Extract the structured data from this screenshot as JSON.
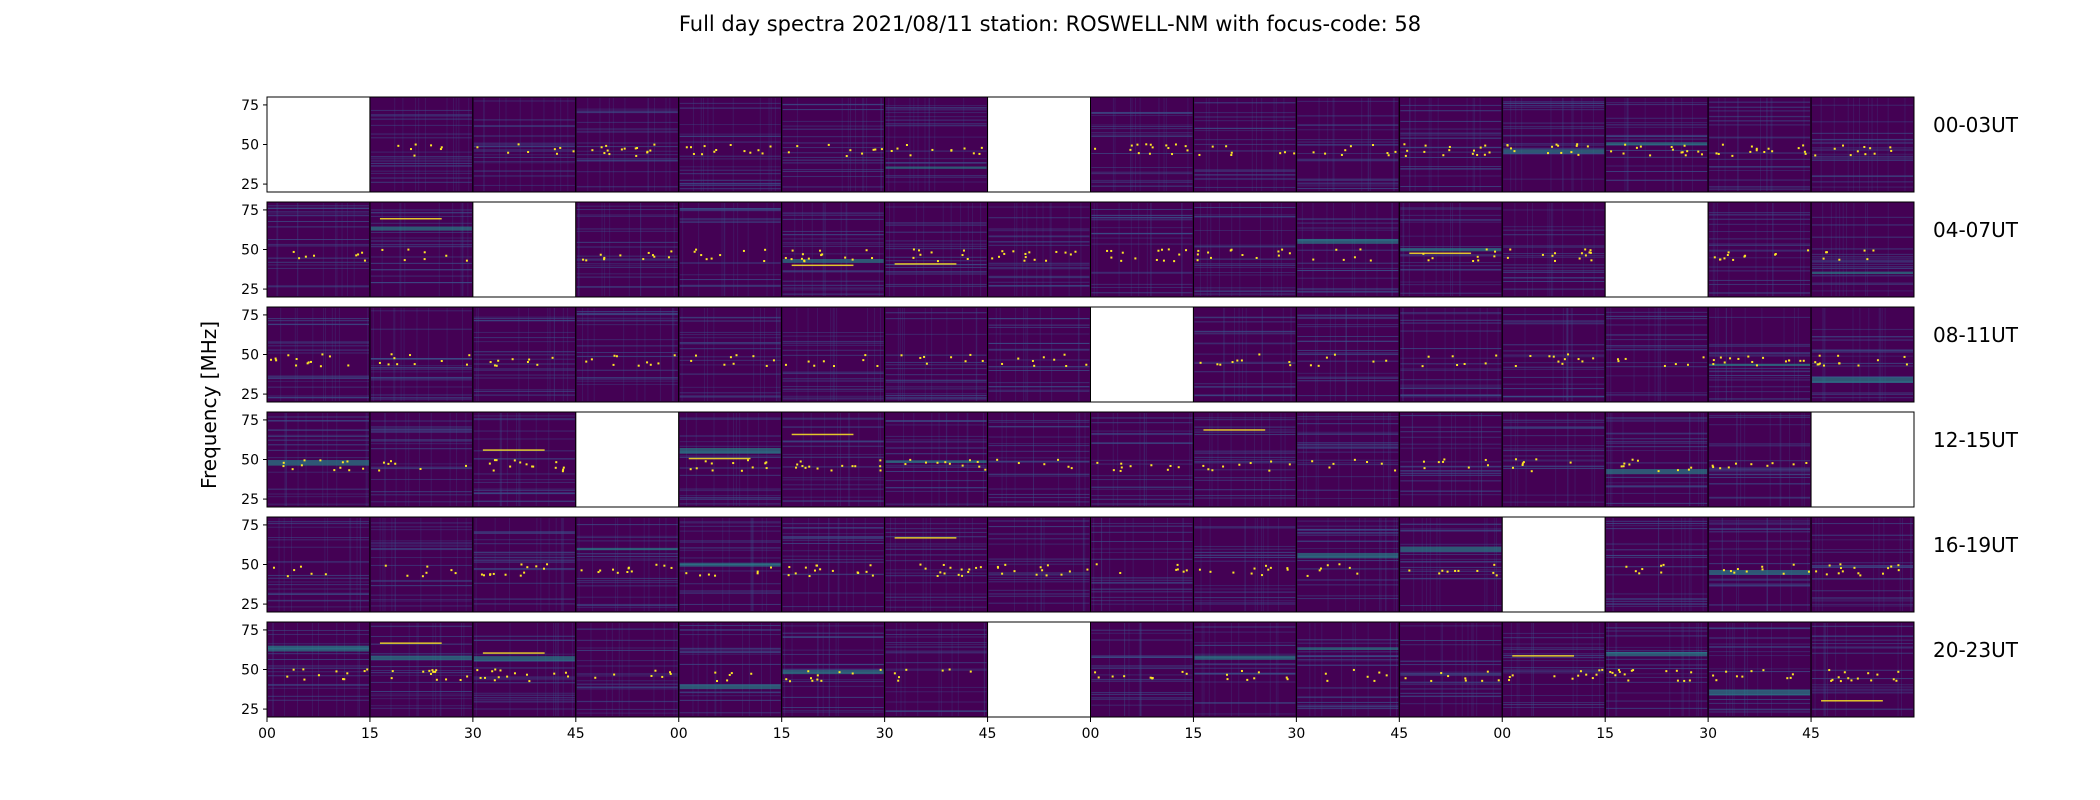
{
  "chart_data": {
    "type": "heatmap",
    "title": "Full day spectra 2021/08/11 station: ROSWELL-NM with focus-code: 58",
    "ylabel": "Frequency [MHz]",
    "xlabel": "",
    "ylim": [
      20,
      80
    ],
    "y_ticks": [
      "75",
      "50",
      "25"
    ],
    "x_ticks": [
      "00",
      "15",
      "30",
      "45",
      "00",
      "15",
      "30",
      "45",
      "00",
      "15",
      "30",
      "45",
      "00",
      "15",
      "30",
      "45"
    ],
    "panels_per_row": 16,
    "colormap": [
      "#440154",
      "#3b528b",
      "#21918c",
      "#5ec962",
      "#fde725"
    ],
    "empty_color": "#ffffff",
    "rows": [
      {
        "label": "00-03UT",
        "missing_panels": [
          0,
          7
        ]
      },
      {
        "label": "04-07UT",
        "missing_panels": [
          2,
          13
        ]
      },
      {
        "label": "08-11UT",
        "missing_panels": [
          8
        ]
      },
      {
        "label": "12-15UT",
        "missing_panels": [
          3,
          15
        ]
      },
      {
        "label": "16-19UT",
        "missing_panels": [
          12
        ]
      },
      {
        "label": "20-23UT",
        "missing_panels": [
          7
        ]
      }
    ]
  }
}
